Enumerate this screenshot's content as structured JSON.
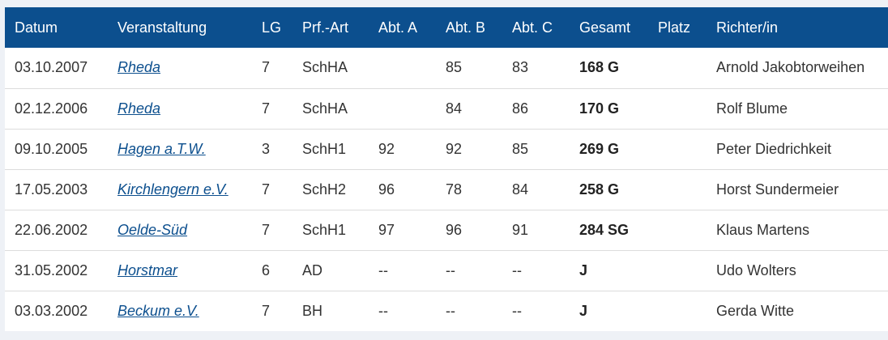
{
  "table": {
    "headers": [
      "Datum",
      "Veranstaltung",
      "LG",
      "Prf.-Art",
      "Abt. A",
      "Abt. B",
      "Abt. C",
      "Gesamt",
      "Platz",
      "Richter/in"
    ],
    "rows": [
      {
        "datum": "03.10.2007",
        "veranstaltung": "Rheda",
        "lg": "7",
        "art": "SchHA",
        "a": "",
        "b": "85",
        "c": "83",
        "gesamt": "168 G",
        "platz": "",
        "richter": "Arnold Jakobtorweihen"
      },
      {
        "datum": "02.12.2006",
        "veranstaltung": "Rheda",
        "lg": "7",
        "art": "SchHA",
        "a": "",
        "b": "84",
        "c": "86",
        "gesamt": "170 G",
        "platz": "",
        "richter": "Rolf Blume"
      },
      {
        "datum": "09.10.2005",
        "veranstaltung": "Hagen a.T.W.",
        "lg": "3",
        "art": "SchH1",
        "a": "92",
        "b": "92",
        "c": "85",
        "gesamt": "269 G",
        "platz": "",
        "richter": "Peter Diedrichkeit"
      },
      {
        "datum": "17.05.2003",
        "veranstaltung": "Kirchlengern e.V.",
        "lg": "7",
        "art": "SchH2",
        "a": "96",
        "b": "78",
        "c": "84",
        "gesamt": "258 G",
        "platz": "",
        "richter": "Horst Sundermeier"
      },
      {
        "datum": "22.06.2002",
        "veranstaltung": "Oelde-Süd",
        "lg": "7",
        "art": "SchH1",
        "a": "97",
        "b": "96",
        "c": "91",
        "gesamt": "284 SG",
        "platz": "",
        "richter": "Klaus Martens"
      },
      {
        "datum": "31.05.2002",
        "veranstaltung": "Horstmar",
        "lg": "6",
        "art": "AD",
        "a": "--",
        "b": "--",
        "c": "--",
        "gesamt": "J",
        "platz": "",
        "richter": "Udo Wolters"
      },
      {
        "datum": "03.03.2002",
        "veranstaltung": "Beckum e.V.",
        "lg": "7",
        "art": "BH",
        "a": "--",
        "b": "--",
        "c": "--",
        "gesamt": "J",
        "platz": "",
        "richter": "Gerda Witte"
      }
    ]
  },
  "colors": {
    "header_bg": "#0c4f8e",
    "link": "#0c4f8e",
    "page_bg": "#eef1f6"
  }
}
